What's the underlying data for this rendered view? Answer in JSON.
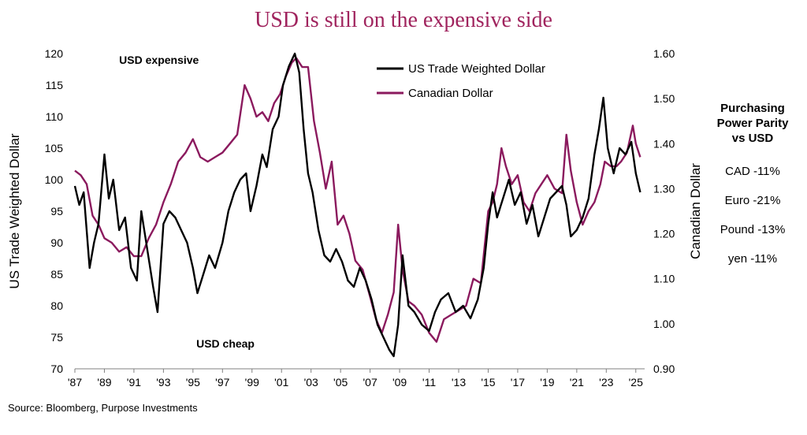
{
  "title": "USD is still on the expensive side",
  "source": "Source: Bloomberg, Purpose Investments",
  "side_panel": {
    "title": "Purchasing\nPower Parity\nvs USD",
    "items": [
      "CAD -11%",
      "Euro -21%",
      "Pound -13%",
      "yen -11%"
    ]
  },
  "colors": {
    "usd": "#000000",
    "cad": "#8b1a5e",
    "title": "#a0245e"
  },
  "chart_data": {
    "type": "line",
    "title": "USD is still on the expensive side",
    "ylabel": "US Trade Weighted Dollar",
    "y2label": "Canadian Dollar",
    "xlim": [
      1987,
      2025.6
    ],
    "ylim": [
      70,
      120
    ],
    "y2lim": [
      0.9,
      1.6
    ],
    "x_ticks": [
      1987,
      1989,
      1991,
      1993,
      1995,
      1997,
      1999,
      2001,
      2003,
      2005,
      2007,
      2009,
      2011,
      2013,
      2015,
      2017,
      2019,
      2021,
      2023,
      2025
    ],
    "x_tick_labels": [
      "'87",
      "'89",
      "'91",
      "'93",
      "'95",
      "'97",
      "'99",
      "'01",
      "'03",
      "'05",
      "'07",
      "'09",
      "'11",
      "'13",
      "'15",
      "'17",
      "'19",
      "'21",
      "'23",
      "'25"
    ],
    "y_ticks": [
      70,
      75,
      80,
      85,
      90,
      95,
      100,
      105,
      110,
      115,
      120
    ],
    "y_tick_labels": [
      "70",
      "75",
      "80",
      "85",
      "90",
      "95",
      "100",
      "105",
      "110",
      "115",
      "120"
    ],
    "y2_ticks": [
      0.9,
      1.0,
      1.1,
      1.2,
      1.3,
      1.4,
      1.5,
      1.6
    ],
    "y2_tick_labels": [
      "0.90",
      "1.00",
      "1.10",
      "1.20",
      "1.30",
      "1.40",
      "1.50",
      "1.60"
    ],
    "grid": false,
    "legend": "top-center",
    "annotations": [
      {
        "text": "USD expensive",
        "x": 1992.7,
        "y": 119
      },
      {
        "text": "USD cheap",
        "x": 1997.2,
        "y": 74
      }
    ],
    "series": [
      {
        "name": "US Trade Weighted Dollar",
        "axis": "left",
        "color": "#000000",
        "x": [
          1987.0,
          1987.3,
          1987.6,
          1988.0,
          1988.3,
          1988.6,
          1989.0,
          1989.3,
          1989.6,
          1990.0,
          1990.4,
          1990.8,
          1991.2,
          1991.5,
          1991.9,
          1992.3,
          1992.6,
          1993.0,
          1993.4,
          1993.8,
          1994.2,
          1994.6,
          1995.0,
          1995.3,
          1995.7,
          1996.1,
          1996.5,
          1997.0,
          1997.4,
          1997.8,
          1998.2,
          1998.6,
          1998.9,
          1999.3,
          1999.7,
          2000.0,
          2000.4,
          2000.8,
          2001.1,
          2001.5,
          2001.9,
          2002.2,
          2002.5,
          2002.8,
          2003.1,
          2003.5,
          2003.9,
          2004.3,
          2004.7,
          2005.1,
          2005.5,
          2005.9,
          2006.3,
          2006.7,
          2007.1,
          2007.5,
          2007.9,
          2008.3,
          2008.6,
          2008.9,
          2009.2,
          2009.6,
          2010.0,
          2010.5,
          2011.0,
          2011.4,
          2011.8,
          2012.3,
          2012.8,
          2013.3,
          2013.8,
          2014.3,
          2014.7,
          2015.0,
          2015.3,
          2015.6,
          2016.0,
          2016.4,
          2016.8,
          2017.2,
          2017.6,
          2018.0,
          2018.4,
          2018.8,
          2019.2,
          2019.6,
          2020.0,
          2020.3,
          2020.6,
          2021.0,
          2021.4,
          2021.8,
          2022.2,
          2022.5,
          2022.8,
          2023.1,
          2023.5,
          2023.9,
          2024.3,
          2024.7,
          2025.0,
          2025.3
        ],
        "values": [
          99,
          96,
          98,
          86,
          90,
          93,
          104,
          97,
          100,
          92,
          94,
          86,
          84,
          95,
          89,
          83,
          79,
          93,
          95,
          94,
          92,
          90,
          86,
          82,
          85,
          88,
          86,
          90,
          95,
          98,
          100,
          101,
          95,
          99,
          104,
          102,
          108,
          110,
          115,
          118,
          120,
          117,
          108,
          101,
          98,
          92,
          88,
          87,
          89,
          87,
          84,
          83,
          86,
          84,
          81,
          77,
          75,
          73,
          72,
          77,
          88,
          80,
          79,
          77,
          76,
          79,
          81,
          82,
          79,
          80,
          78,
          81,
          86,
          93,
          98,
          94,
          97,
          100,
          96,
          98,
          93,
          96,
          91,
          94,
          97,
          98,
          99,
          96,
          91,
          92,
          94,
          97,
          104,
          108,
          113,
          105,
          101,
          105,
          104,
          106,
          101,
          98
        ]
      },
      {
        "name": "Canadian Dollar",
        "axis": "right",
        "color": "#8b1a5e",
        "x": [
          1987.0,
          1987.4,
          1987.8,
          1988.2,
          1988.6,
          1989.0,
          1989.5,
          1990.0,
          1990.5,
          1991.0,
          1991.5,
          1992.0,
          1992.5,
          1993.0,
          1993.5,
          1994.0,
          1994.5,
          1995.0,
          1995.5,
          1996.0,
          1996.5,
          1997.0,
          1997.5,
          1998.0,
          1998.5,
          1998.9,
          1999.3,
          1999.7,
          2000.1,
          2000.5,
          2000.9,
          2001.3,
          2001.7,
          2002.0,
          2002.4,
          2002.8,
          2003.2,
          2003.6,
          2004.0,
          2004.4,
          2004.8,
          2005.2,
          2005.6,
          2006.0,
          2006.5,
          2007.0,
          2007.4,
          2007.8,
          2008.2,
          2008.6,
          2008.9,
          2009.2,
          2009.6,
          2010.0,
          2010.5,
          2011.0,
          2011.5,
          2012.0,
          2012.5,
          2013.0,
          2013.5,
          2014.0,
          2014.5,
          2015.0,
          2015.3,
          2015.6,
          2015.9,
          2016.2,
          2016.6,
          2017.0,
          2017.4,
          2017.8,
          2018.2,
          2018.6,
          2019.0,
          2019.5,
          2020.0,
          2020.3,
          2020.6,
          2021.0,
          2021.4,
          2021.8,
          2022.2,
          2022.6,
          2022.9,
          2023.3,
          2023.7,
          2024.0,
          2024.4,
          2024.8,
          2025.0,
          2025.3
        ],
        "values": [
          1.34,
          1.33,
          1.31,
          1.24,
          1.22,
          1.19,
          1.18,
          1.16,
          1.17,
          1.15,
          1.15,
          1.19,
          1.22,
          1.27,
          1.31,
          1.36,
          1.38,
          1.41,
          1.37,
          1.36,
          1.37,
          1.38,
          1.4,
          1.42,
          1.53,
          1.5,
          1.46,
          1.47,
          1.45,
          1.49,
          1.51,
          1.55,
          1.58,
          1.59,
          1.57,
          1.57,
          1.45,
          1.38,
          1.3,
          1.36,
          1.22,
          1.24,
          1.2,
          1.14,
          1.12,
          1.06,
          1.01,
          0.98,
          1.02,
          1.07,
          1.22,
          1.12,
          1.05,
          1.04,
          1.02,
          0.98,
          0.96,
          1.01,
          1.02,
          1.03,
          1.04,
          1.1,
          1.09,
          1.25,
          1.27,
          1.31,
          1.39,
          1.35,
          1.31,
          1.33,
          1.27,
          1.25,
          1.29,
          1.31,
          1.33,
          1.3,
          1.29,
          1.42,
          1.34,
          1.27,
          1.22,
          1.25,
          1.27,
          1.31,
          1.36,
          1.35,
          1.35,
          1.36,
          1.38,
          1.44,
          1.4,
          1.37
        ]
      }
    ]
  }
}
